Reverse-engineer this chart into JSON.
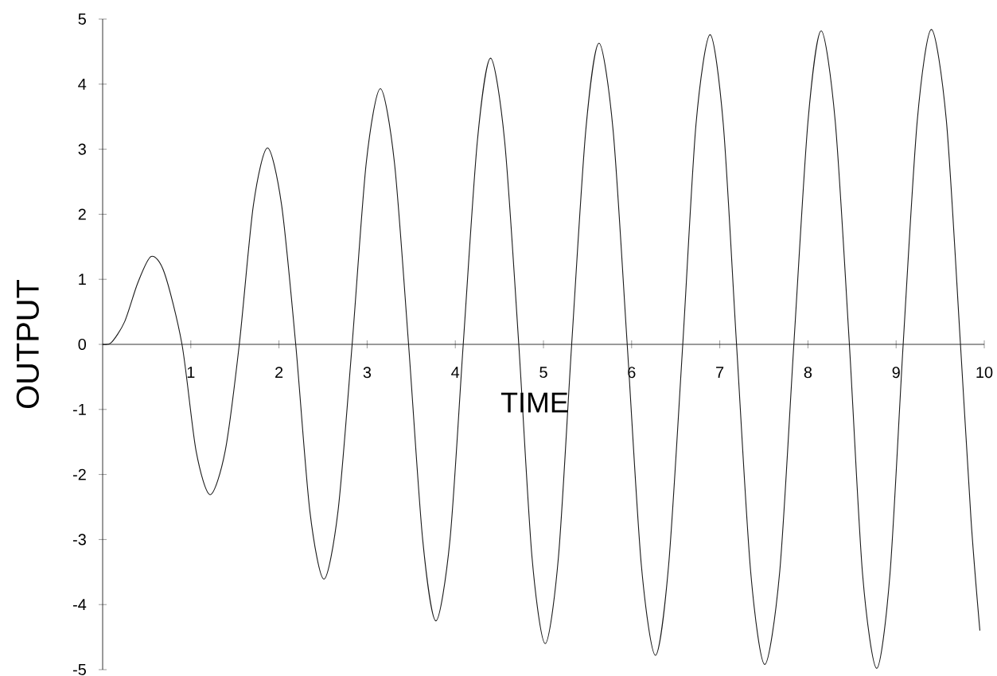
{
  "chart_data": {
    "type": "line",
    "xlabel": "TIME",
    "ylabel": "OUTPUT",
    "color": "#1a1a1a",
    "line_style": "solid",
    "xlim": [
      0,
      10
    ],
    "ylim": [
      -5,
      5
    ],
    "xticks": [
      1,
      2,
      3,
      4,
      5,
      6,
      7,
      8,
      9,
      10
    ],
    "yticks": [
      -5,
      -4,
      -3,
      -2,
      -1,
      0,
      1,
      2,
      3,
      4,
      5
    ],
    "x": [
      0,
      0.1,
      0.25,
      0.4,
      0.55,
      0.7,
      0.9,
      1.06,
      1.22,
      1.39,
      1.55,
      1.71,
      1.87,
      2.03,
      2.19,
      2.35,
      2.51,
      2.67,
      2.83,
      2.99,
      3.15,
      3.31,
      3.47,
      3.63,
      3.78,
      3.94,
      4.09,
      4.25,
      4.4,
      4.56,
      4.72,
      4.87,
      5.02,
      5.17,
      5.32,
      5.48,
      5.63,
      5.79,
      5.95,
      6.11,
      6.27,
      6.42,
      6.58,
      6.73,
      6.89,
      7.04,
      7.19,
      7.35,
      7.51,
      7.68,
      7.84,
      8.0,
      8.15,
      8.31,
      8.47,
      8.62,
      8.78,
      8.93,
      9.08,
      9.24,
      9.4,
      9.57,
      9.73,
      9.85,
      9.95
    ],
    "values": [
      0,
      0.03,
      0.35,
      0.95,
      1.35,
      1.1,
      0,
      -1.64,
      -2.31,
      -1.64,
      0,
      2.14,
      3.02,
      2.14,
      0,
      -2.56,
      -3.61,
      -2.56,
      0,
      2.79,
      3.93,
      2.79,
      0,
      -3.0,
      -4.25,
      -3.0,
      0,
      3.12,
      4.4,
      3.12,
      0,
      -3.27,
      -4.6,
      -3.27,
      0,
      3.29,
      4.63,
      3.29,
      0,
      -3.39,
      -4.78,
      -3.39,
      0,
      3.38,
      4.76,
      3.38,
      0,
      -3.49,
      -4.92,
      -3.49,
      0,
      3.42,
      4.82,
      3.42,
      0,
      -3.54,
      -4.98,
      -3.54,
      0,
      3.44,
      4.84,
      3.44,
      0,
      -2.7,
      -4.4
    ]
  }
}
